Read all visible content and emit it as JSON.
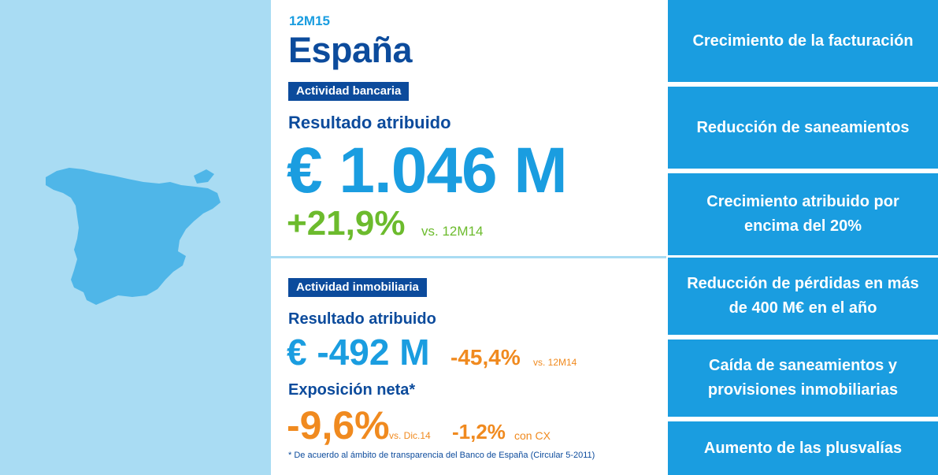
{
  "header": {
    "period": "12M15",
    "country": "España"
  },
  "banking": {
    "tag": "Actividad bancaria",
    "label": "Resultado atribuido",
    "value": "€ 1.046 M",
    "delta": "+21,9%",
    "delta_ref": "vs. 12M14"
  },
  "real_estate": {
    "tag": "Actividad inmobiliaria",
    "label": "Resultado atribuido",
    "value": "€ -492 M",
    "delta": "-45,4%",
    "delta_ref": "vs. 12M14",
    "exposure_label": "Exposición neta*",
    "exposure_delta": "-9,6%",
    "exposure_ref": "vs. Dic.14",
    "cx_delta": "-1,2%",
    "cx_ref": "con CX",
    "footnote": "* De acuerdo al ámbito de transparencia del Banco de España  (Circular 5-2011)"
  },
  "highlights": [
    "Crecimiento de la facturación",
    "Reducción de saneamientos",
    "Crecimiento atribuido por encima del 20%",
    "Reducción de pérdidas en más de 400 M€ en el año",
    "Caída de saneamientos y provisiones inmobiliarias",
    "Aumento de las plusvalías"
  ],
  "colors": {
    "navy": "#0c4b9c",
    "blue": "#1a9de0",
    "light_blue": "#a9dcf3",
    "green": "#6cbb2d",
    "orange": "#f08a1f"
  },
  "icons": {
    "map": "spain-map-icon"
  }
}
